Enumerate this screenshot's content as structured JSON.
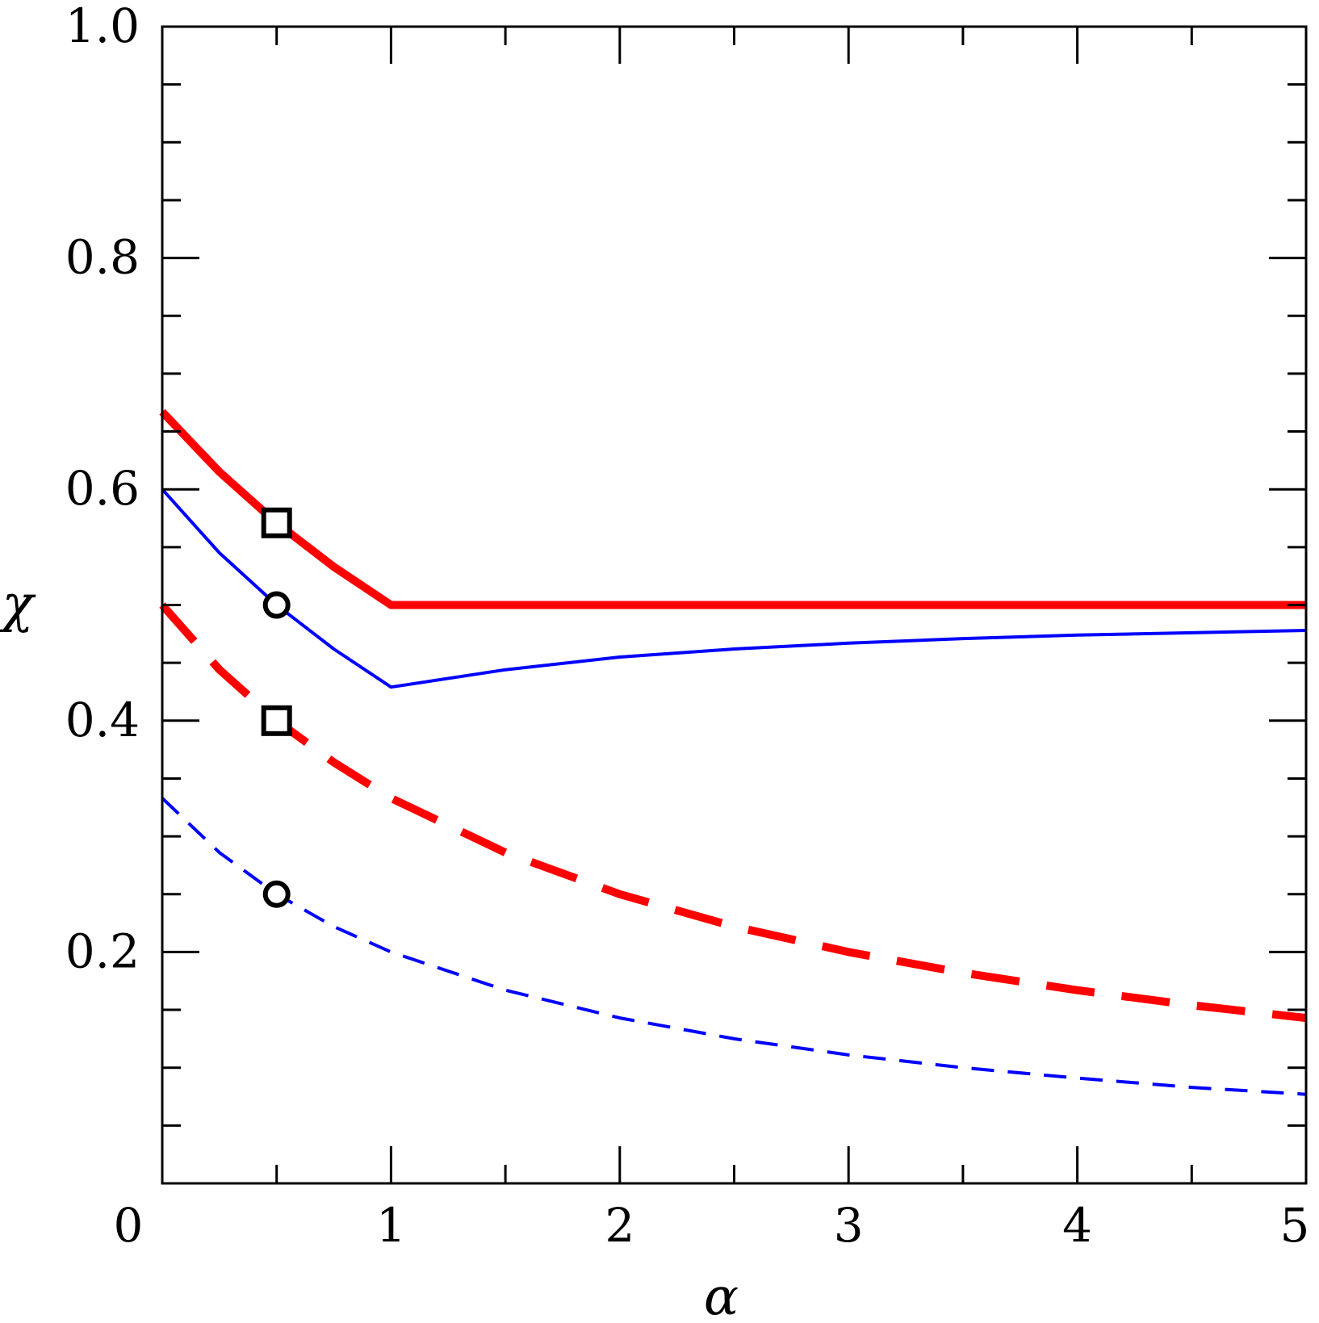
{
  "chart_data": {
    "type": "line",
    "title": "",
    "xlabel": "α",
    "ylabel": "χ",
    "xlim": [
      0,
      5
    ],
    "ylim": [
      0,
      1.0
    ],
    "grid": false,
    "legend": "none",
    "x_ticks": [
      {
        "value": 0,
        "label": "0"
      },
      {
        "value": 1,
        "label": "1"
      },
      {
        "value": 2,
        "label": "2"
      },
      {
        "value": 3,
        "label": "3"
      },
      {
        "value": 4,
        "label": "4"
      },
      {
        "value": 5,
        "label": "5"
      }
    ],
    "y_ticks": [
      {
        "value": 0.2,
        "label": "0.2"
      },
      {
        "value": 0.4,
        "label": "0.4"
      },
      {
        "value": 0.6,
        "label": "0.6"
      },
      {
        "value": 0.8,
        "label": "0.8"
      },
      {
        "value": 1.0,
        "label": "1.0"
      }
    ],
    "series": [
      {
        "color": "#ff0000",
        "style": "solid",
        "weight": "thick",
        "points": [
          [
            0,
            0.667
          ],
          [
            0.25,
            0.615
          ],
          [
            0.5,
            0.571
          ],
          [
            0.75,
            0.533
          ],
          [
            1,
            0.5
          ],
          [
            2,
            0.5
          ],
          [
            3,
            0.5
          ],
          [
            4,
            0.5
          ],
          [
            5,
            0.5
          ]
        ]
      },
      {
        "color": "#0000ff",
        "style": "solid",
        "weight": "thin",
        "points": [
          [
            0,
            0.6
          ],
          [
            0.25,
            0.545
          ],
          [
            0.5,
            0.5
          ],
          [
            0.75,
            0.462
          ],
          [
            1,
            0.429
          ],
          [
            1.5,
            0.444
          ],
          [
            2,
            0.455
          ],
          [
            2.5,
            0.462
          ],
          [
            3,
            0.467
          ],
          [
            3.5,
            0.471
          ],
          [
            4,
            0.474
          ],
          [
            4.5,
            0.476
          ],
          [
            5,
            0.478
          ]
        ]
      },
      {
        "color": "#ff0000",
        "style": "dashed",
        "weight": "thick",
        "points": [
          [
            0,
            0.5
          ],
          [
            0.25,
            0.444
          ],
          [
            0.5,
            0.4
          ],
          [
            0.75,
            0.364
          ],
          [
            1,
            0.333
          ],
          [
            1.5,
            0.286
          ],
          [
            2,
            0.25
          ],
          [
            2.5,
            0.222
          ],
          [
            3,
            0.2
          ],
          [
            3.5,
            0.182
          ],
          [
            4,
            0.167
          ],
          [
            4.5,
            0.154
          ],
          [
            5,
            0.143
          ]
        ]
      },
      {
        "color": "#0000ff",
        "style": "dashed",
        "weight": "thin",
        "points": [
          [
            0,
            0.333
          ],
          [
            0.25,
            0.286
          ],
          [
            0.5,
            0.25
          ],
          [
            0.75,
            0.222
          ],
          [
            1,
            0.2
          ],
          [
            1.5,
            0.167
          ],
          [
            2,
            0.143
          ],
          [
            2.5,
            0.125
          ],
          [
            3,
            0.111
          ],
          [
            3.5,
            0.1
          ],
          [
            4,
            0.091
          ],
          [
            4.5,
            0.083
          ],
          [
            5,
            0.077
          ]
        ]
      }
    ],
    "markers": [
      {
        "shape": "square",
        "x": 0.5,
        "y": 0.571
      },
      {
        "shape": "circle",
        "x": 0.5,
        "y": 0.5
      },
      {
        "shape": "square",
        "x": 0.5,
        "y": 0.4
      },
      {
        "shape": "circle",
        "x": 0.5,
        "y": 0.25
      }
    ]
  }
}
